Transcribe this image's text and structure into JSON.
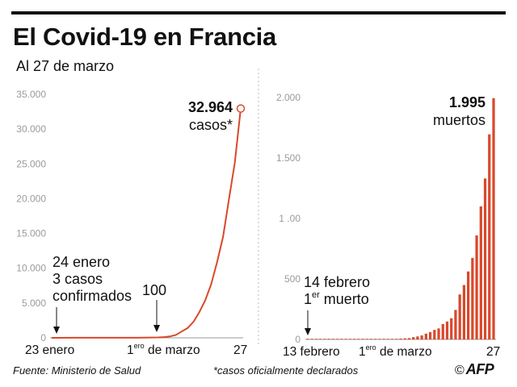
{
  "header": {
    "title": "El Covid-19 en Francia",
    "subtitle": "Al 27 de marzo"
  },
  "footer": {
    "source": "Fuente: Ministerio de Salud",
    "note": "*casos oficialmente declarados",
    "copyright": "©",
    "logo": "AFP"
  },
  "colors": {
    "accent": "#d9482b",
    "tick": "#9a9a9a",
    "grid": "#cccccc"
  },
  "chart_data": [
    {
      "type": "line",
      "ylim": [
        0,
        35000
      ],
      "yticks": [
        "35.000",
        "30.000",
        "25.000",
        "20.000",
        "15.000",
        "10.000",
        "5.000",
        "0"
      ],
      "xticks": {
        "start": "23 enero",
        "march_pre": "1",
        "march_sup": "ero",
        "march_post": " de marzo",
        "end": "27"
      },
      "x": [
        "01-23",
        "01-24",
        "01-31",
        "02-07",
        "02-14",
        "02-21",
        "02-28",
        "03-01",
        "03-03",
        "03-05",
        "03-07",
        "03-09",
        "03-11",
        "03-13",
        "03-15",
        "03-17",
        "03-19",
        "03-21",
        "03-23",
        "03-25",
        "03-27"
      ],
      "values": [
        0,
        3,
        6,
        11,
        11,
        12,
        57,
        100,
        200,
        400,
        900,
        1400,
        2300,
        3700,
        5400,
        7700,
        10900,
        14500,
        19900,
        25200,
        32964
      ],
      "annotations": {
        "last_value": "32.964",
        "last_unit": "casos*",
        "first_line1": "24 enero",
        "first_line2": "3 casos",
        "first_line3": "confirmados",
        "hundred": "100"
      }
    },
    {
      "type": "bar",
      "ylim": [
        0,
        2000
      ],
      "yticks": [
        "2.000",
        "1.500",
        "1 .00",
        "500",
        "0"
      ],
      "xticks": {
        "start": "13 febrero",
        "march_pre": "1",
        "march_sup": "ero",
        "march_post": " de marzo",
        "end": "27"
      },
      "x_start": "02-13",
      "x_end": "03-27",
      "values": [
        0,
        1,
        1,
        1,
        1,
        1,
        1,
        1,
        1,
        1,
        1,
        1,
        1,
        1,
        1,
        1,
        2,
        2,
        2,
        3,
        4,
        4,
        7,
        9,
        11,
        19,
        25,
        33,
        48,
        61,
        79,
        91,
        127,
        148,
        175,
        244,
        372,
        450,
        562,
        674,
        860,
        1100,
        1331,
        1696,
        1995
      ],
      "annotations": {
        "last_value": "1.995",
        "last_unit": "muertos",
        "first_line1": "14 febrero",
        "first_line2_pre": "1",
        "first_line2_sup": "er",
        "first_line2_post": " muerto"
      }
    }
  ]
}
